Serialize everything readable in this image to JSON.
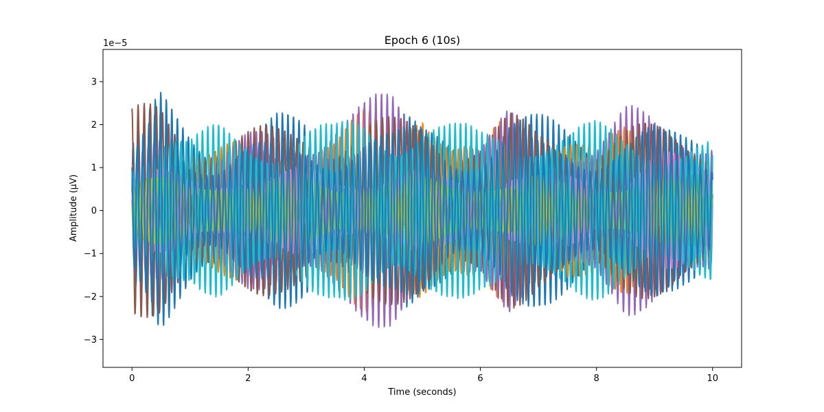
{
  "chart_data": {
    "type": "line",
    "title": "Epoch 6 (10s)",
    "xlabel": "Time (seconds)",
    "ylabel": "Amplitude (µV)",
    "y_offset_label": "1e−5",
    "xlim": [
      -0.5,
      10.5
    ],
    "ylim": [
      -3.65e-05,
      3.75e-05
    ],
    "xticks": [
      0,
      2,
      4,
      6,
      8,
      10
    ],
    "xtick_labels": [
      "0",
      "2",
      "4",
      "6",
      "8",
      "10"
    ],
    "yticks": [
      -3e-05,
      -2e-05,
      -1e-05,
      0,
      1e-05,
      2e-05,
      3e-05
    ],
    "ytick_labels": [
      "−3",
      "−2",
      "−1",
      "0",
      "1",
      "2",
      "3"
    ],
    "grid": false,
    "legend": "none",
    "series": [
      {
        "color": "#1f77b4",
        "carrier_hz": 10.5,
        "phase": 0.3,
        "envelope": [
          0.62,
          1.0,
          0.8,
          0.68,
          0.7,
          0.82,
          0.8,
          0.75,
          0.85,
          0.9,
          0.7,
          0.75,
          0.72,
          0.88,
          0.8,
          0.78,
          0.72,
          0.85,
          0.7,
          0.65,
          0.68
        ]
      },
      {
        "color": "#ff7f0e",
        "carrier_hz": 9.8,
        "phase": 1.1,
        "envelope": [
          0.45,
          0.6,
          0.52,
          0.55,
          0.6,
          0.62,
          0.8,
          0.68,
          0.85,
          0.75,
          1.3,
          0.72,
          0.55,
          0.85,
          0.62,
          0.95,
          0.6,
          0.7,
          0.55,
          0.62,
          0.58
        ]
      },
      {
        "color": "#2ca02c",
        "carrier_hz": 11.3,
        "phase": 2.0,
        "envelope": [
          0.3,
          0.35,
          0.3,
          0.32,
          0.3,
          0.25,
          0.3,
          0.35,
          0.3,
          0.28,
          0.3,
          0.3,
          0.25,
          0.35,
          0.3,
          0.28,
          0.3,
          0.3,
          0.35,
          0.3,
          0.3
        ]
      },
      {
        "color": "#d62728",
        "carrier_hz": 12.1,
        "phase": 0.7,
        "envelope": [
          0.2,
          0.22,
          0.2,
          0.25,
          0.2,
          0.22,
          0.2,
          0.18,
          0.2,
          0.22,
          0.2,
          0.2,
          0.22,
          0.2,
          0.2,
          0.22,
          0.2,
          0.25,
          0.2,
          0.2,
          0.2
        ]
      },
      {
        "color": "#9467bd",
        "carrier_hz": 10.2,
        "phase": 2.6,
        "envelope": [
          0.4,
          0.85,
          0.6,
          0.5,
          0.65,
          0.72,
          0.8,
          0.95,
          0.95,
          1.0,
          0.82,
          0.9,
          0.6,
          0.85,
          0.62,
          0.75,
          0.7,
          0.9,
          0.8,
          0.82,
          0.85
        ]
      },
      {
        "color": "#8c564b",
        "carrier_hz": 9.5,
        "phase": 1.6,
        "envelope": [
          0.85,
          1.0,
          0.82,
          0.7,
          0.7,
          0.72,
          0.82,
          0.75,
          0.82,
          0.78,
          0.8,
          0.75,
          0.72,
          0.85,
          0.68,
          0.7,
          0.72,
          0.78,
          0.72,
          0.68,
          0.7
        ]
      },
      {
        "color": "#e377c2",
        "carrier_hz": 11.8,
        "phase": 0.2,
        "envelope": [
          0.3,
          0.35,
          0.3,
          0.32,
          0.35,
          0.3,
          0.4,
          0.35,
          0.32,
          0.3,
          0.35,
          0.32,
          0.3,
          0.35,
          0.3,
          0.32,
          0.3,
          0.35,
          0.55,
          0.45,
          0.35
        ]
      },
      {
        "color": "#7f7f7f",
        "carrier_hz": 12.6,
        "phase": 1.3,
        "envelope": [
          0.18,
          0.2,
          0.18,
          0.2,
          0.18,
          0.2,
          0.18,
          0.2,
          0.18,
          0.2,
          0.18,
          0.2,
          0.18,
          0.2,
          0.18,
          0.2,
          0.18,
          0.2,
          0.18,
          0.2,
          0.18
        ]
      },
      {
        "color": "#bcbd22",
        "carrier_hz": 11.0,
        "phase": 2.9,
        "envelope": [
          0.25,
          0.28,
          0.25,
          0.3,
          0.25,
          0.28,
          0.3,
          0.25,
          0.28,
          0.25,
          0.3,
          0.25,
          0.28,
          0.25,
          0.3,
          0.25,
          0.28,
          0.25,
          0.3,
          0.25,
          0.28
        ]
      },
      {
        "color": "#17becf",
        "carrier_hz": 10.8,
        "phase": 0.9,
        "envelope": [
          0.55,
          0.8,
          0.62,
          0.75,
          0.72,
          0.7,
          0.78,
          0.72,
          0.85,
          0.8,
          0.9,
          0.75,
          0.7,
          0.82,
          0.78,
          0.72,
          0.75,
          0.72,
          0.7,
          0.62,
          0.6
        ]
      },
      {
        "color": "#1f77b4",
        "carrier_hz": 10.0,
        "phase": 2.2,
        "envelope": [
          0.45,
          0.95,
          0.55,
          0.5,
          0.6,
          0.55,
          0.62,
          0.58,
          0.7,
          0.65,
          0.78,
          0.62,
          0.55,
          0.68,
          0.6,
          0.62,
          0.58,
          0.65,
          0.72,
          0.6,
          0.55
        ]
      }
    ]
  }
}
